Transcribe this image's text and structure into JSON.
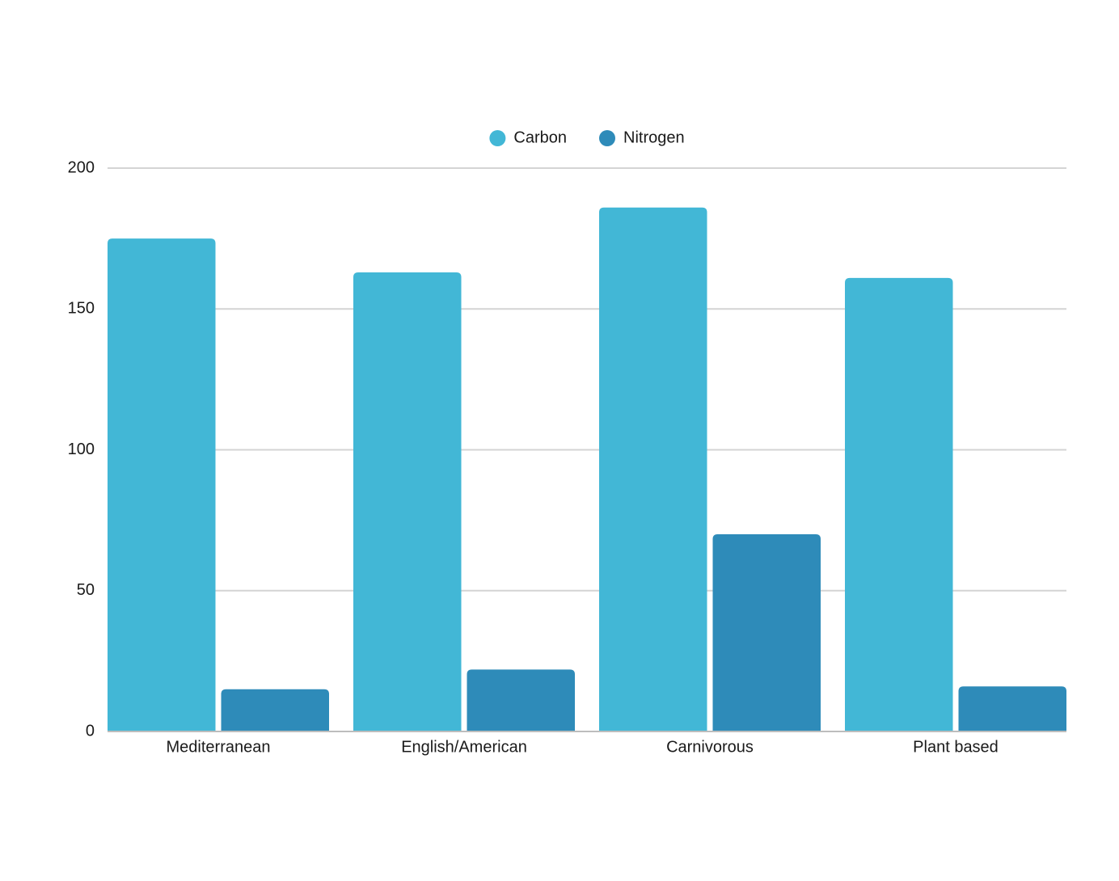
{
  "chart_data": {
    "type": "bar",
    "categories": [
      "Mediterranean",
      "English/American",
      "Carnivorous",
      "Plant based"
    ],
    "series": [
      {
        "name": "Carbon",
        "color": "#42b7d6",
        "values": [
          175,
          163,
          186,
          161
        ]
      },
      {
        "name": "Nitrogen",
        "color": "#2e8bb9",
        "values": [
          15,
          22,
          70,
          16
        ]
      }
    ],
    "ylim": [
      0,
      200
    ],
    "yticks": [
      0,
      50,
      100,
      150,
      200
    ],
    "grid": true,
    "legend": "top"
  }
}
